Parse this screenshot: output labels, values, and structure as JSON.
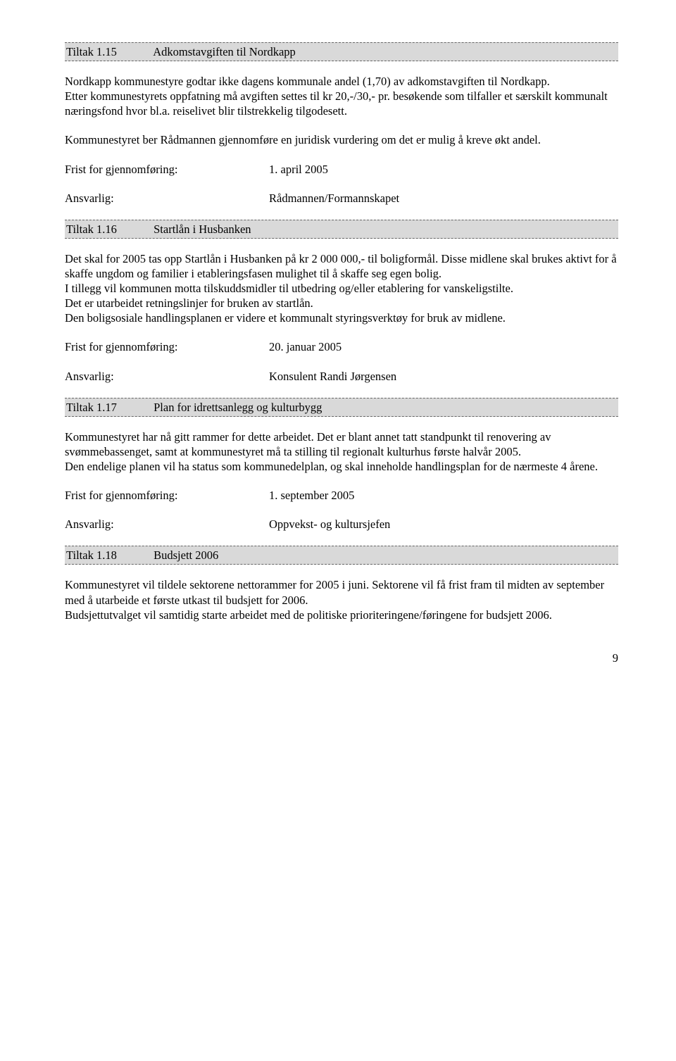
{
  "sections": [
    {
      "num": "Tiltak 1.15",
      "title": "Adkomstavgiften til Nordkapp",
      "body": [
        "Nordkapp kommunestyre godtar ikke dagens kommunale andel  (1,70) av adkomstavgiften til Nordkapp.",
        "Etter kommunestyrets oppfatning må avgiften settes til kr 20,-/30,- pr. besøkende som tilfaller et særskilt kommunalt næringsfond hvor bl.a. reiselivet blir tilstrekkelig tilgodesett.",
        "Kommunestyret ber Rådmannen gjennomføre en juridisk vurdering om det er mulig å kreve økt andel."
      ],
      "frist_label": "Frist for gjennomføring:",
      "frist_value": "1. april 2005",
      "ansvarlig_label": "Ansvarlig:",
      "ansvarlig_value": "Rådmannen/Formannskapet"
    },
    {
      "num": "Tiltak 1.16",
      "title": "Startlån i Husbanken",
      "body": [
        "Det skal for 2005 tas opp Startlån i Husbanken på kr 2 000 000,- til boligformål. Disse midlene skal brukes aktivt for å skaffe ungdom og familier i etableringsfasen mulighet til å skaffe seg egen bolig.",
        "I tillegg vil kommunen motta tilskuddsmidler til utbedring og/eller etablering for vanskeligstilte.",
        "Det er utarbeidet retningslinjer for bruken av startlån.",
        "Den boligsosiale handlingsplanen er videre et kommunalt styringsverktøy for bruk av midlene."
      ],
      "frist_label": "Frist for gjennomføring:",
      "frist_value": "20. januar 2005",
      "ansvarlig_label": "Ansvarlig:",
      "ansvarlig_value": "Konsulent Randi Jørgensen"
    },
    {
      "num": "Tiltak 1.17",
      "title": "Plan for idrettsanlegg og kulturbygg",
      "body": [
        "Kommunestyret har nå gitt rammer for dette arbeidet. Det er blant annet tatt standpunkt til renovering av svømmebassenget, samt at kommunestyret må ta stilling til regionalt kulturhus første halvår 2005.",
        "Den endelige planen vil ha status som kommunedelplan, og skal inneholde handlingsplan for de nærmeste 4 årene."
      ],
      "frist_label": "Frist for gjennomføring:",
      "frist_value": "1. september 2005",
      "ansvarlig_label": "Ansvarlig:",
      "ansvarlig_value": "Oppvekst- og kultursjefen"
    },
    {
      "num": "Tiltak 1.18",
      "title": "Budsjett 2006",
      "body": [
        "Kommunestyret vil tildele sektorene nettorammer for 2005 i juni. Sektorene vil få frist fram til midten av september med å utarbeide et første utkast til budsjett for 2006.",
        "Budsjettutvalget vil samtidig starte arbeidet med de politiske prioriteringene/føringene for budsjett 2006."
      ]
    }
  ],
  "page_number": "9"
}
